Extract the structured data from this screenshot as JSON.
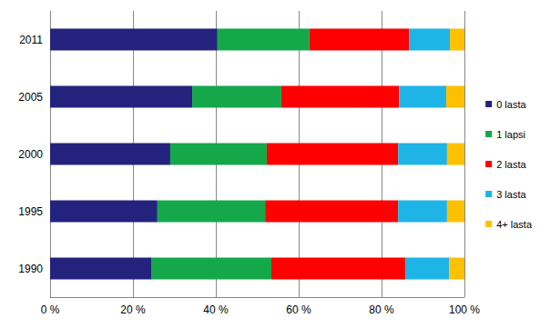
{
  "chart_data": {
    "type": "bar",
    "orientation": "horizontal",
    "stacked": true,
    "grid": true,
    "legend": "right",
    "categories": [
      "1990",
      "1995",
      "2000",
      "2005",
      "2011"
    ],
    "series": [
      {
        "name": "0 lasta",
        "color": "#23237D",
        "values": [
          24.4,
          25.9,
          29.0,
          34.3,
          40.4
        ]
      },
      {
        "name": "1 lapsi",
        "color": "#14A84B",
        "values": [
          29.0,
          26.0,
          23.3,
          21.5,
          22.2
        ]
      },
      {
        "name": "2 lasta",
        "color": "#FF0000",
        "values": [
          32.3,
          32.1,
          31.7,
          28.4,
          24.0
        ]
      },
      {
        "name": "3 lasta",
        "color": "#1EB4E6",
        "values": [
          10.6,
          11.8,
          11.8,
          11.4,
          9.9
        ]
      },
      {
        "name": "4+ lasta",
        "color": "#FFC000",
        "values": [
          3.7,
          4.2,
          4.2,
          4.4,
          3.5
        ]
      }
    ],
    "xlim": [
      0,
      100
    ],
    "xticks": [
      {
        "value": 0,
        "label": "0 %"
      },
      {
        "value": 20,
        "label": "20 %"
      },
      {
        "value": 40,
        "label": "40 %"
      },
      {
        "value": 60,
        "label": "60 %"
      },
      {
        "value": 80,
        "label": "80 %"
      },
      {
        "value": 100,
        "label": "100 %"
      }
    ]
  }
}
